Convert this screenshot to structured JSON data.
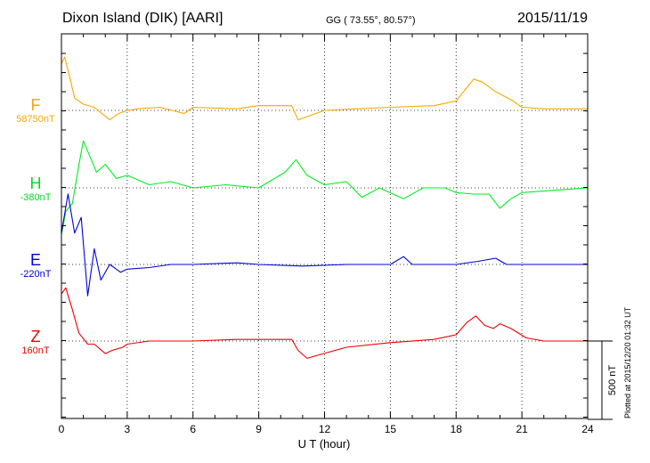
{
  "header": {
    "station": "Dixon Island (DIK)  [AARI]",
    "coords": "GG ( 73.55°,  80.57°)",
    "date": "2015/11/19"
  },
  "credit": "Plotted at 2015/12/20 01:32 UT",
  "scale_label": "500 nT",
  "chart_data": {
    "type": "line",
    "xlabel": "U T (hour)",
    "xlim": [
      0,
      24
    ],
    "x_ticks": [
      0,
      3,
      6,
      9,
      12,
      15,
      18,
      21,
      24
    ],
    "scale_bar_nT": 500,
    "grid": "dotted vertical every 3 h, dotted baseline per trace",
    "series": [
      {
        "name": "F",
        "baseline_label": "58750nT",
        "color": "#f5a800",
        "x": [
          0,
          0.15,
          0.4,
          0.6,
          1.0,
          1.5,
          2.2,
          2.6,
          3.0,
          3.5,
          4.5,
          5.6,
          6.0,
          8.0,
          9.0,
          10.5,
          10.8,
          11.2,
          12.0,
          13.5,
          15.0,
          17.0,
          18.0,
          18.8,
          19.2,
          19.8,
          20.6,
          21.0,
          22.0,
          24.0
        ],
        "y": [
          300,
          340,
          200,
          80,
          40,
          20,
          -60,
          -20,
          0,
          10,
          20,
          -20,
          20,
          10,
          30,
          30,
          -60,
          -40,
          0,
          10,
          20,
          30,
          60,
          200,
          180,
          120,
          60,
          20,
          10,
          10
        ]
      },
      {
        "name": "H",
        "baseline_label": "-380nT",
        "color": "#00ee22",
        "x": [
          0,
          0.2,
          0.5,
          0.8,
          1.0,
          1.3,
          1.6,
          2.0,
          2.5,
          3.0,
          4.0,
          5.0,
          6.0,
          7.5,
          9.0,
          10.2,
          10.7,
          11.2,
          12.0,
          13.0,
          13.7,
          14.5,
          15.6,
          16.5,
          17.5,
          18.0,
          18.8,
          19.5,
          20.0,
          20.5,
          21.0,
          24.0
        ],
        "y": [
          -300,
          -150,
          -100,
          150,
          300,
          200,
          100,
          150,
          60,
          80,
          20,
          40,
          0,
          20,
          0,
          100,
          180,
          80,
          20,
          40,
          -60,
          0,
          -70,
          0,
          0,
          -30,
          -40,
          -40,
          -130,
          -70,
          -30,
          0
        ]
      },
      {
        "name": "E",
        "baseline_label": "-220nT",
        "color": "#0000dd",
        "x": [
          0,
          0.3,
          0.6,
          0.9,
          1.2,
          1.5,
          1.8,
          2.2,
          2.7,
          3.0,
          4.0,
          5.0,
          6.0,
          8.0,
          9.0,
          11.0,
          13.0,
          15.0,
          15.6,
          16.0,
          18.0,
          19.0,
          19.8,
          20.3,
          21.0,
          24.0
        ],
        "y": [
          200,
          450,
          200,
          300,
          -200,
          100,
          -100,
          0,
          -50,
          -30,
          -20,
          0,
          0,
          10,
          0,
          -10,
          0,
          0,
          50,
          0,
          0,
          20,
          40,
          0,
          0,
          0
        ]
      },
      {
        "name": "Z",
        "baseline_label": "160nT",
        "color": "#ee0000",
        "x": [
          0,
          0.2,
          0.5,
          0.8,
          1.2,
          1.5,
          2.0,
          2.3,
          2.8,
          3.0,
          4.0,
          6.0,
          8.0,
          10.5,
          10.8,
          11.2,
          13.0,
          15.0,
          17.0,
          18.0,
          18.5,
          18.9,
          19.3,
          19.7,
          20.0,
          20.5,
          21.2,
          22.0,
          24.0
        ],
        "y": [
          300,
          340,
          200,
          50,
          -20,
          -20,
          -80,
          -60,
          -40,
          -20,
          0,
          0,
          10,
          10,
          -60,
          -110,
          -40,
          -10,
          10,
          40,
          120,
          160,
          100,
          80,
          110,
          80,
          20,
          0,
          0
        ]
      }
    ]
  }
}
